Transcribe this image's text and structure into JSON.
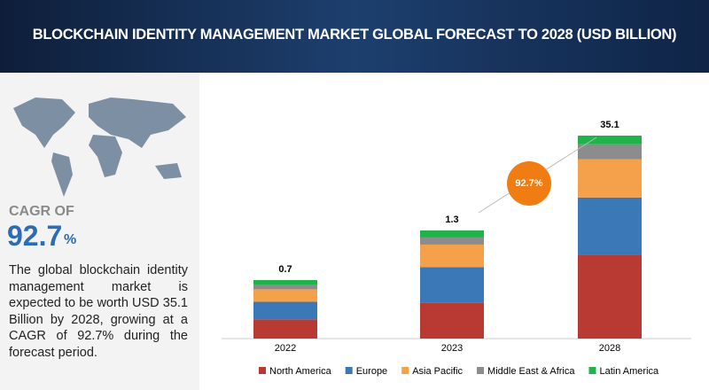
{
  "chart_data": {
    "type": "stacked_bar",
    "title": "BLOCKCHAIN IDENTITY MANAGEMENT MARKET GLOBAL FORECAST TO 2028 (USD BILLION)",
    "categories": [
      "2022",
      "2023",
      "2028"
    ],
    "series": [
      {
        "name": "North America",
        "color": "#b83a33",
        "values": [
          0.23,
          0.43,
          14.5
        ]
      },
      {
        "name": "Europe",
        "color": "#3b78b8",
        "values": [
          0.21,
          0.43,
          9.9
        ]
      },
      {
        "name": "Asia Pacific",
        "color": "#f5a04a",
        "values": [
          0.15,
          0.27,
          6.6
        ]
      },
      {
        "name": "Middle East & Africa",
        "color": "#8c8c8c",
        "values": [
          0.05,
          0.09,
          2.6
        ]
      },
      {
        "name": "Latin America",
        "color": "#1fb34a",
        "values": [
          0.06,
          0.08,
          1.5
        ]
      }
    ],
    "totals": [
      0.7,
      1.3,
      35.1
    ],
    "annotation": "92.7%"
  },
  "panel": {
    "cagr_label": "CAGR OF",
    "cagr_value": "92.7",
    "cagr_unit": "%",
    "description": "The global blockchain identity management market is expected to be worth USD 35.1 Billion by 2028, growing at a CAGR of 92.7% during the forecast period."
  }
}
